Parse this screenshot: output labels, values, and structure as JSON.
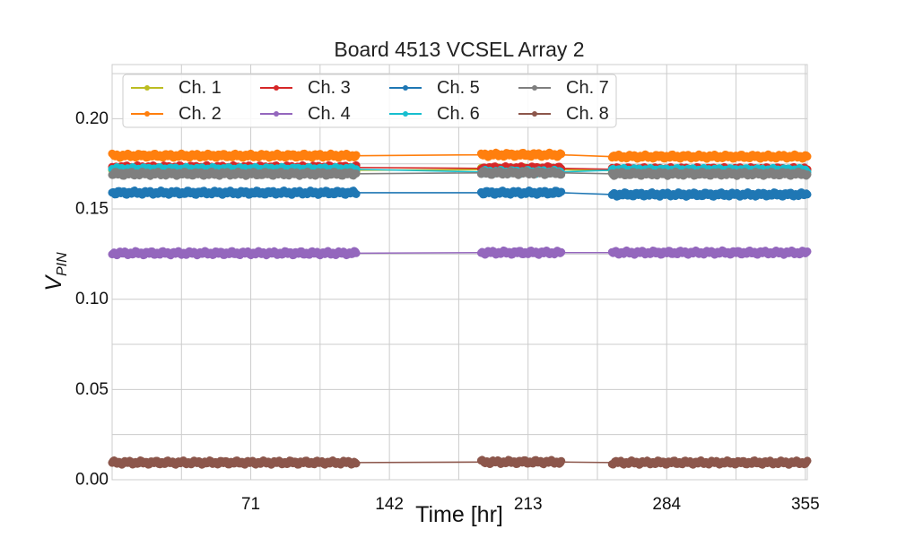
{
  "chart_data": {
    "type": "line",
    "title": "Board 4513 VCSEL Array 2",
    "xlabel": "Time [hr]",
    "ylabel_main": "V",
    "ylabel_sub": "PIN",
    "xlim": [
      0,
      356
    ],
    "ylim": [
      0,
      0.23
    ],
    "x_ticks": [
      71,
      142,
      213,
      284,
      355
    ],
    "x_tick_labels": [
      "71",
      "142",
      "213",
      "284",
      "355"
    ],
    "y_ticks": [
      0.0,
      0.05,
      0.1,
      0.15,
      0.2
    ],
    "y_tick_labels": [
      "0.00",
      "0.05",
      "0.10",
      "0.15",
      "0.20"
    ],
    "grid": true,
    "legend_position": "top-left",
    "x_segments": [
      [
        0,
        125
      ],
      [
        189,
        230
      ],
      [
        256,
        356
      ]
    ],
    "series": [
      {
        "name": "Ch. 1",
        "color": "#bcbd22",
        "values": [
          0.1715,
          0.1718,
          0.1712
        ]
      },
      {
        "name": "Ch. 2",
        "color": "#ff7f0e",
        "values": [
          0.1795,
          0.18,
          0.179
        ]
      },
      {
        "name": "Ch. 3",
        "color": "#d62728",
        "values": [
          0.173,
          0.1725,
          0.172
        ]
      },
      {
        "name": "Ch. 4",
        "color": "#9467bd",
        "values": [
          0.1255,
          0.1258,
          0.1258
        ]
      },
      {
        "name": "Ch. 5",
        "color": "#1f77b4",
        "values": [
          0.159,
          0.159,
          0.158
        ]
      },
      {
        "name": "Ch. 6",
        "color": "#17becf",
        "values": [
          0.172,
          0.1705,
          0.1715
        ]
      },
      {
        "name": "Ch. 7",
        "color": "#7f7f7f",
        "values": [
          0.1695,
          0.17,
          0.1695
        ]
      },
      {
        "name": "Ch. 8",
        "color": "#8c564b",
        "values": [
          0.0095,
          0.0098,
          0.0095
        ]
      }
    ]
  }
}
